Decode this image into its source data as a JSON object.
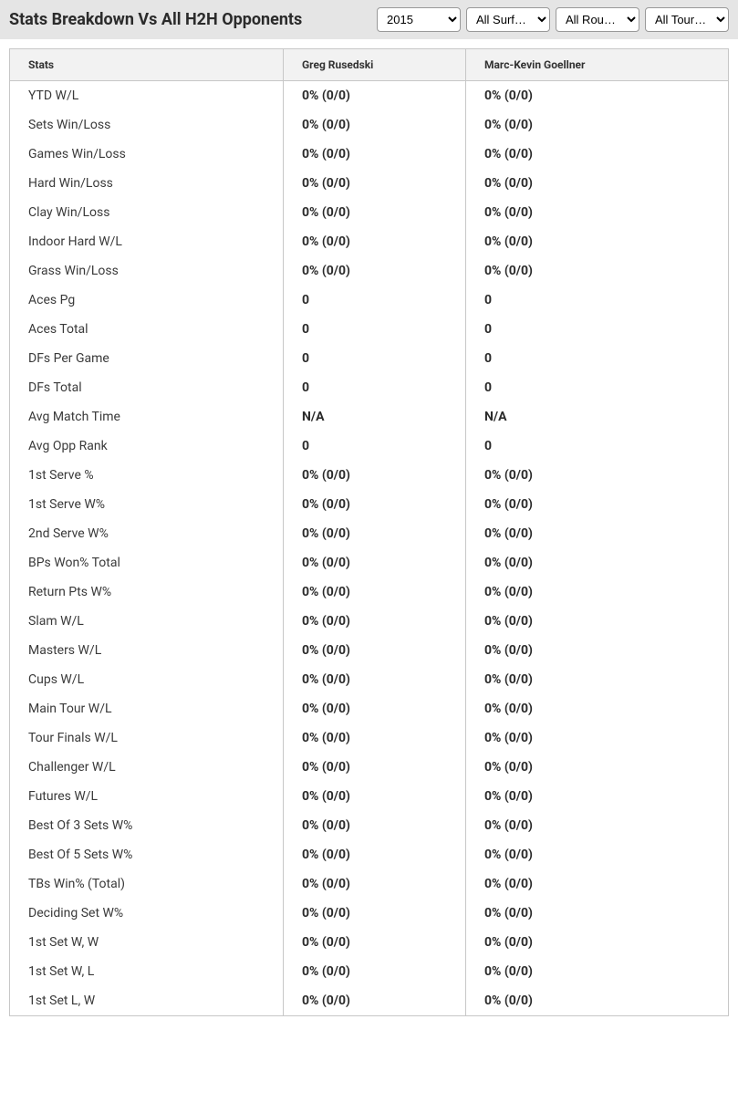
{
  "header": {
    "title": "Stats Breakdown Vs All H2H Opponents",
    "filters": {
      "year": "2015",
      "surface": "All Surf…",
      "round": "All Rou…",
      "tour": "All Tour…"
    }
  },
  "table": {
    "columns": [
      "Stats",
      "Greg Rusedski",
      "Marc-Kevin Goellner"
    ],
    "rows": [
      {
        "stat": "YTD W/L",
        "p1": "0% (0/0)",
        "p2": "0% (0/0)"
      },
      {
        "stat": "Sets Win/Loss",
        "p1": "0% (0/0)",
        "p2": "0% (0/0)"
      },
      {
        "stat": "Games Win/Loss",
        "p1": "0% (0/0)",
        "p2": "0% (0/0)"
      },
      {
        "stat": "Hard Win/Loss",
        "p1": "0% (0/0)",
        "p2": "0% (0/0)"
      },
      {
        "stat": "Clay Win/Loss",
        "p1": "0% (0/0)",
        "p2": "0% (0/0)"
      },
      {
        "stat": "Indoor Hard W/L",
        "p1": "0% (0/0)",
        "p2": "0% (0/0)"
      },
      {
        "stat": "Grass Win/Loss",
        "p1": "0% (0/0)",
        "p2": "0% (0/0)"
      },
      {
        "stat": "Aces Pg",
        "p1": "0",
        "p2": "0"
      },
      {
        "stat": "Aces Total",
        "p1": "0",
        "p2": "0"
      },
      {
        "stat": "DFs Per Game",
        "p1": "0",
        "p2": "0"
      },
      {
        "stat": "DFs Total",
        "p1": "0",
        "p2": "0"
      },
      {
        "stat": "Avg Match Time",
        "p1": "N/A",
        "p2": "N/A"
      },
      {
        "stat": "Avg Opp Rank",
        "p1": "0",
        "p2": "0"
      },
      {
        "stat": "1st Serve %",
        "p1": "0% (0/0)",
        "p2": "0% (0/0)"
      },
      {
        "stat": "1st Serve W%",
        "p1": "0% (0/0)",
        "p2": "0% (0/0)"
      },
      {
        "stat": "2nd Serve W%",
        "p1": "0% (0/0)",
        "p2": "0% (0/0)"
      },
      {
        "stat": "BPs Won% Total",
        "p1": "0% (0/0)",
        "p2": "0% (0/0)"
      },
      {
        "stat": "Return Pts W%",
        "p1": "0% (0/0)",
        "p2": "0% (0/0)"
      },
      {
        "stat": "Slam W/L",
        "p1": "0% (0/0)",
        "p2": "0% (0/0)"
      },
      {
        "stat": "Masters W/L",
        "p1": "0% (0/0)",
        "p2": "0% (0/0)"
      },
      {
        "stat": "Cups W/L",
        "p1": "0% (0/0)",
        "p2": "0% (0/0)"
      },
      {
        "stat": "Main Tour W/L",
        "p1": "0% (0/0)",
        "p2": "0% (0/0)"
      },
      {
        "stat": "Tour Finals W/L",
        "p1": "0% (0/0)",
        "p2": "0% (0/0)"
      },
      {
        "stat": "Challenger W/L",
        "p1": "0% (0/0)",
        "p2": "0% (0/0)"
      },
      {
        "stat": "Futures W/L",
        "p1": "0% (0/0)",
        "p2": "0% (0/0)"
      },
      {
        "stat": "Best Of 3 Sets W%",
        "p1": "0% (0/0)",
        "p2": "0% (0/0)"
      },
      {
        "stat": "Best Of 5 Sets W%",
        "p1": "0% (0/0)",
        "p2": "0% (0/0)"
      },
      {
        "stat": "TBs Win% (Total)",
        "p1": "0% (0/0)",
        "p2": "0% (0/0)"
      },
      {
        "stat": "Deciding Set W%",
        "p1": "0% (0/0)",
        "p2": "0% (0/0)"
      },
      {
        "stat": "1st Set W, W",
        "p1": "0% (0/0)",
        "p2": "0% (0/0)"
      },
      {
        "stat": "1st Set W, L",
        "p1": "0% (0/0)",
        "p2": "0% (0/0)"
      },
      {
        "stat": "1st Set L, W",
        "p1": "0% (0/0)",
        "p2": "0% (0/0)"
      }
    ]
  }
}
